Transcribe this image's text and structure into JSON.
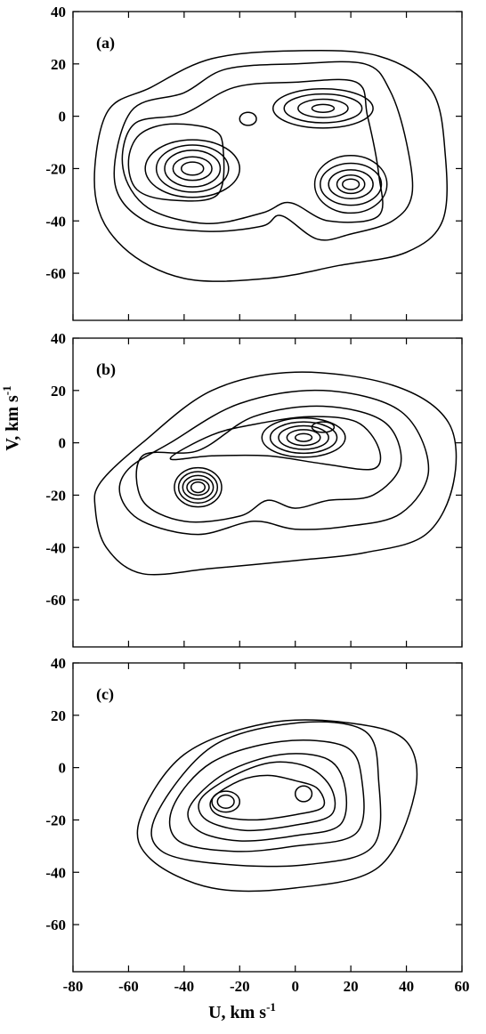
{
  "chart_data": {
    "type": "contour",
    "xlabel": "U, km s",
    "xlabel_sup": "-1",
    "ylabel": "V, km s",
    "ylabel_sup": "-1",
    "xlim": [
      -80,
      60
    ],
    "ylim": [
      -78,
      40
    ],
    "x_ticks": [
      -80,
      -60,
      -40,
      -20,
      0,
      20,
      40,
      60
    ],
    "x_tick_labels": [
      "-80",
      "-60",
      "-40",
      "-20",
      "0",
      "20",
      "40",
      "60"
    ],
    "y_ticks": [
      40,
      20,
      0,
      -20,
      -40,
      -60
    ],
    "y_tick_labels": [
      "40",
      "20",
      "0",
      "-20",
      "-40",
      "-60"
    ],
    "grid": false,
    "line_color": "#000000",
    "panels": [
      {
        "label": "(a)",
        "peaks": [
          {
            "U": -37,
            "V": -20,
            "radii": [
              [
                4,
                2.5
              ],
              [
                7,
                4.5
              ],
              [
                10,
                7
              ],
              [
                13,
                9
              ],
              [
                17,
                11
              ]
            ]
          },
          {
            "U": 20,
            "V": -26,
            "radii": [
              [
                3,
                2
              ],
              [
                5,
                3.5
              ],
              [
                8,
                5.5
              ],
              [
                11,
                8
              ],
              [
                13,
                11
              ]
            ]
          },
          {
            "U": 10,
            "V": 3,
            "radii": [
              [
                4,
                1.5
              ],
              [
                9,
                3.5
              ],
              [
                14,
                5.5
              ],
              [
                18,
                7.5
              ]
            ]
          },
          {
            "U": -17,
            "V": -1,
            "radii": [
              [
                3,
                2.5
              ]
            ]
          }
        ],
        "outer_contours": [
          [
            [
              -56,
              -7
            ],
            [
              -45,
              -3
            ],
            [
              -30,
              -5
            ],
            [
              -26,
              -12
            ],
            [
              -28,
              -30
            ],
            [
              -45,
              -32
            ],
            [
              -57,
              -28
            ],
            [
              -60,
              -17
            ]
          ],
          [
            [
              -58,
              -3
            ],
            [
              -40,
              1
            ],
            [
              -22,
              11
            ],
            [
              0,
              13
            ],
            [
              22,
              13
            ],
            [
              26,
              0
            ],
            [
              30,
              -22
            ],
            [
              30,
              -38
            ],
            [
              12,
              -40
            ],
            [
              -2,
              -33
            ],
            [
              -12,
              -37
            ],
            [
              -32,
              -41
            ],
            [
              -53,
              -35
            ],
            [
              -62,
              -20
            ]
          ],
          [
            [
              -59,
              2
            ],
            [
              -40,
              9
            ],
            [
              -25,
              18
            ],
            [
              0,
              20
            ],
            [
              25,
              20
            ],
            [
              34,
              10
            ],
            [
              40,
              -10
            ],
            [
              42,
              -30
            ],
            [
              35,
              -40
            ],
            [
              20,
              -45
            ],
            [
              8,
              -47
            ],
            [
              -5,
              -38
            ],
            [
              -12,
              -42
            ],
            [
              -32,
              -44
            ],
            [
              -54,
              -40
            ],
            [
              -65,
              -25
            ]
          ],
          [
            [
              -68,
              1
            ],
            [
              -52,
              11
            ],
            [
              -30,
              22
            ],
            [
              0,
              25
            ],
            [
              30,
              23
            ],
            [
              49,
              10
            ],
            [
              54,
              -15
            ],
            [
              53,
              -40
            ],
            [
              40,
              -52
            ],
            [
              16,
              -57
            ],
            [
              -10,
              -62
            ],
            [
              -40,
              -62
            ],
            [
              -62,
              -50
            ],
            [
              -72,
              -30
            ]
          ]
        ]
      },
      {
        "label": "(b)",
        "peaks": [
          {
            "U": -35,
            "V": -17,
            "radii": [
              [
                2.5,
                2
              ],
              [
                4,
                3
              ],
              [
                5.5,
                4.5
              ],
              [
                7,
                6
              ],
              [
                8.5,
                7.5
              ]
            ]
          },
          {
            "U": 3,
            "V": 2,
            "radii": [
              [
                3,
                1.5
              ],
              [
                6,
                3
              ],
              [
                9,
                4.5
              ],
              [
                12,
                6
              ],
              [
                15,
                7.5
              ]
            ]
          },
          {
            "U": 10,
            "V": 6,
            "radii": [
              [
                4,
                2
              ]
            ]
          }
        ],
        "outer_contours": [
          [
            [
              -45,
              -6
            ],
            [
              -30,
              -5
            ],
            [
              -10,
              -5
            ],
            [
              10,
              -8
            ],
            [
              28,
              -10
            ],
            [
              30,
              -2
            ],
            [
              22,
              8
            ],
            [
              5,
              10
            ],
            [
              -15,
              7
            ],
            [
              -30,
              3
            ]
          ],
          [
            [
              -55,
              -5
            ],
            [
              -35,
              -3
            ],
            [
              -15,
              10
            ],
            [
              10,
              14
            ],
            [
              32,
              8
            ],
            [
              38,
              -8
            ],
            [
              28,
              -20
            ],
            [
              12,
              -22
            ],
            [
              0,
              -25
            ],
            [
              -10,
              -22
            ],
            [
              -20,
              -28
            ],
            [
              -40,
              -30
            ],
            [
              -55,
              -22
            ]
          ],
          [
            [
              -60,
              -10
            ],
            [
              -45,
              0
            ],
            [
              -20,
              15
            ],
            [
              10,
              20
            ],
            [
              38,
              12
            ],
            [
              48,
              -10
            ],
            [
              38,
              -27
            ],
            [
              18,
              -32
            ],
            [
              0,
              -33
            ],
            [
              -15,
              -30
            ],
            [
              -35,
              -35
            ],
            [
              -55,
              -30
            ],
            [
              -63,
              -20
            ]
          ],
          [
            [
              -70,
              -15
            ],
            [
              -55,
              0
            ],
            [
              -30,
              20
            ],
            [
              0,
              27
            ],
            [
              35,
              22
            ],
            [
              55,
              8
            ],
            [
              57,
              -15
            ],
            [
              47,
              -35
            ],
            [
              25,
              -42
            ],
            [
              0,
              -45
            ],
            [
              -30,
              -48
            ],
            [
              -55,
              -50
            ],
            [
              -68,
              -40
            ],
            [
              -72,
              -25
            ]
          ]
        ]
      },
      {
        "label": "(c)",
        "peaks": [
          {
            "U": -25,
            "V": -13,
            "radii": [
              [
                3,
                2.5
              ],
              [
                5,
                4
              ]
            ]
          },
          {
            "U": 3,
            "V": -10,
            "radii": [
              [
                3,
                3
              ]
            ]
          }
        ],
        "outer_contours": [
          [
            [
              -30,
              -12
            ],
            [
              -20,
              -5
            ],
            [
              -10,
              -3
            ],
            [
              0,
              -5
            ],
            [
              8,
              -8
            ],
            [
              10,
              -15
            ],
            [
              0,
              -18
            ],
            [
              -15,
              -20
            ],
            [
              -28,
              -18
            ]
          ],
          [
            [
              -34,
              -12
            ],
            [
              -22,
              -3
            ],
            [
              -8,
              2
            ],
            [
              5,
              0
            ],
            [
              13,
              -8
            ],
            [
              13,
              -18
            ],
            [
              0,
              -22
            ],
            [
              -18,
              -24
            ],
            [
              -32,
              -20
            ]
          ],
          [
            [
              -38,
              -15
            ],
            [
              -25,
              -2
            ],
            [
              -5,
              5
            ],
            [
              12,
              3
            ],
            [
              18,
              -8
            ],
            [
              16,
              -22
            ],
            [
              0,
              -26
            ],
            [
              -20,
              -28
            ],
            [
              -35,
              -24
            ]
          ],
          [
            [
              -44,
              -15
            ],
            [
              -30,
              2
            ],
            [
              -5,
              10
            ],
            [
              18,
              8
            ],
            [
              24,
              -5
            ],
            [
              22,
              -25
            ],
            [
              0,
              -30
            ],
            [
              -22,
              -32
            ],
            [
              -42,
              -28
            ]
          ],
          [
            [
              -50,
              -18
            ],
            [
              -30,
              8
            ],
            [
              0,
              17
            ],
            [
              25,
              14
            ],
            [
              30,
              -5
            ],
            [
              28,
              -30
            ],
            [
              5,
              -37
            ],
            [
              -25,
              -37
            ],
            [
              -48,
              -32
            ]
          ],
          [
            [
              -56,
              -20
            ],
            [
              -40,
              5
            ],
            [
              -10,
              17
            ],
            [
              20,
              17
            ],
            [
              40,
              10
            ],
            [
              43,
              -10
            ],
            [
              30,
              -38
            ],
            [
              0,
              -46
            ],
            [
              -30,
              -46
            ],
            [
              -52,
              -35
            ]
          ]
        ]
      }
    ]
  }
}
